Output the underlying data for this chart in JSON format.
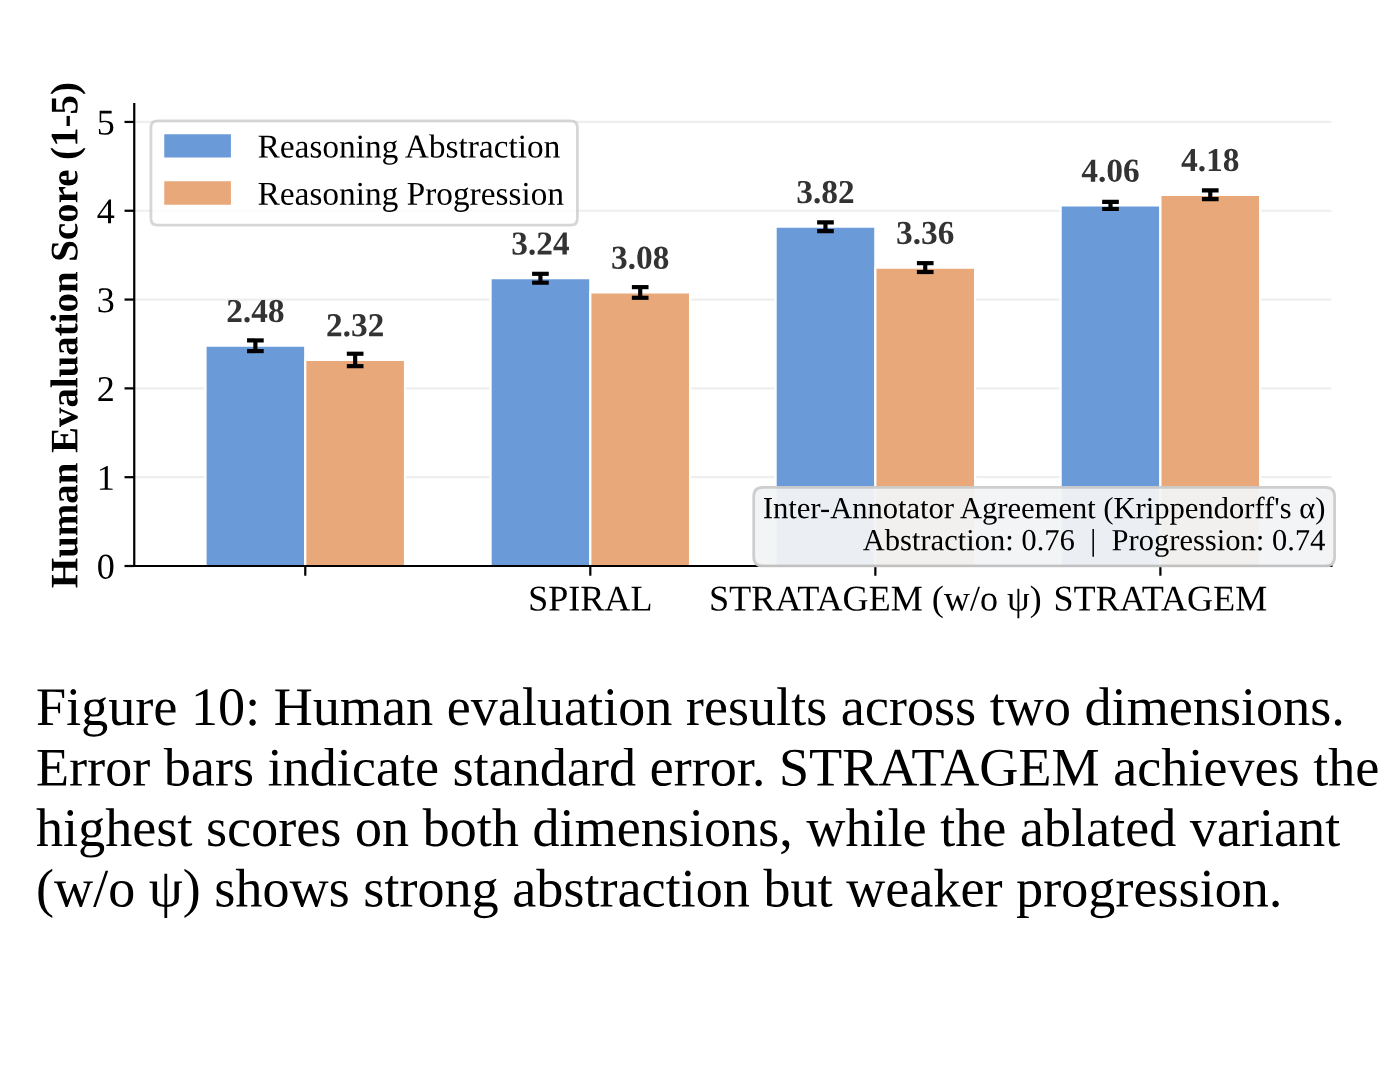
{
  "chart_data": {
    "type": "bar",
    "ylabel": "Human Evaluation Score (1-5)",
    "categories": [
      null,
      "SPIRAL",
      "STRATAGEM (w/o ψ)",
      "STRATAGEM"
    ],
    "series": [
      {
        "name": "Reasoning Abstraction",
        "color": "#6a9bd8",
        "values": [
          2.48,
          3.24,
          3.82,
          4.06
        ],
        "errors": [
          0.06,
          0.05,
          0.05,
          0.04
        ]
      },
      {
        "name": "Reasoning Progression",
        "color": "#e9a87a",
        "values": [
          2.32,
          3.08,
          3.36,
          4.18
        ],
        "errors": [
          0.07,
          0.06,
          0.05,
          0.05
        ]
      }
    ],
    "ylim": [
      0,
      5.2
    ],
    "yticks": [
      0,
      1,
      2,
      3,
      4,
      5
    ],
    "grid": "y",
    "legend": "top left",
    "data_labels": true,
    "annotations": [
      "Inter-Annotator Agreement (Krippendorff's α)\nAbstraction: 0.76  |  Progression: 0.74",
      "Figure 10: Human evaluation results across two dimensions. Error bars indicate standard error. STRATAGEM achieves the highest scores on both dimensions, while the ablated variant (w/o ψ) shows strong abstraction but weaker progression."
    ]
  }
}
